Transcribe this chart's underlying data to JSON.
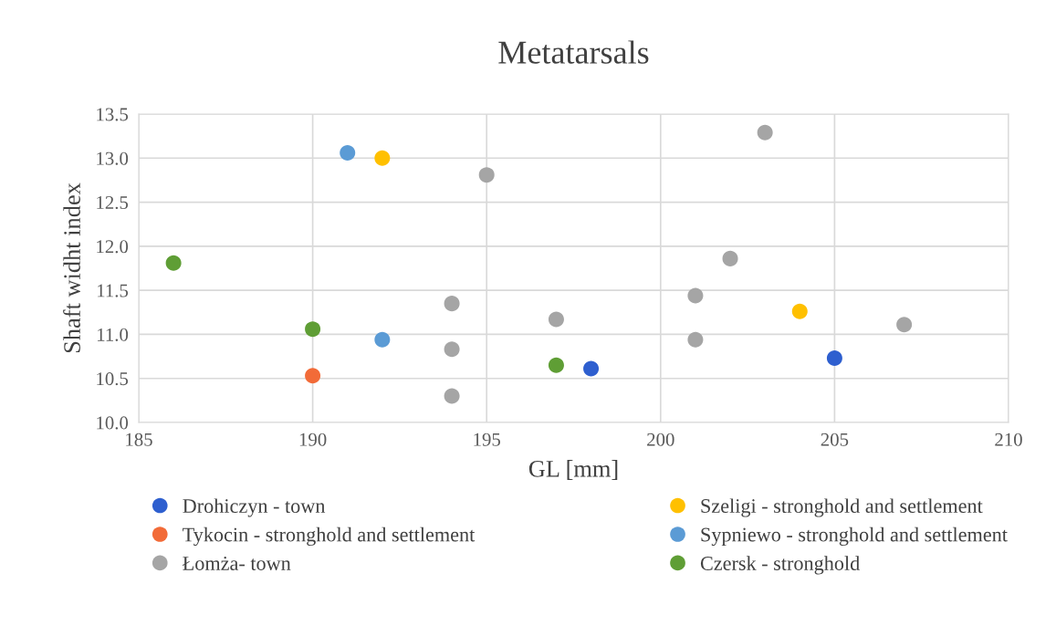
{
  "chart_data": {
    "type": "scatter",
    "title": "Metatarsals",
    "xlabel": "GL [mm]",
    "ylabel": "Shaft widht index",
    "xlim": [
      185,
      210
    ],
    "xticks": [
      185,
      190,
      195,
      200,
      205,
      210
    ],
    "ylim": [
      10.0,
      13.5
    ],
    "yticks": [
      {
        "value": 10.0,
        "label": "10.0"
      },
      {
        "value": 10.5,
        "label": "10.5"
      },
      {
        "value": 11.0,
        "label": "11.0"
      },
      {
        "value": 11.5,
        "label": "11.5"
      },
      {
        "value": 12.0,
        "label": "12.0"
      },
      {
        "value": 12.5,
        "label": "12.5"
      },
      {
        "value": 13.0,
        "label": "13.0"
      },
      {
        "value": 13.5,
        "label": "13.5"
      }
    ],
    "grid": true,
    "legend": "bottom",
    "marker": "circle",
    "series": [
      {
        "name": "Drohiczyn - town",
        "color": "#2e5fcf",
        "x": [
          198,
          205
        ],
        "values": [
          10.61,
          10.73
        ]
      },
      {
        "name": "Tykocin - stronghold and settlement",
        "color": "#f26b38",
        "x": [
          190
        ],
        "values": [
          10.53
        ]
      },
      {
        "name": "Łomża- town",
        "color": "#a5a5a5",
        "x": [
          203,
          195,
          202,
          194,
          201,
          197,
          207,
          194,
          201,
          194
        ],
        "values": [
          13.29,
          12.81,
          11.86,
          11.35,
          11.44,
          11.17,
          11.11,
          10.83,
          10.94,
          10.3
        ]
      },
      {
        "name": "Szeligi - stronghold and settlement",
        "color": "#ffc000",
        "x": [
          192,
          204
        ],
        "values": [
          13.0,
          11.26
        ]
      },
      {
        "name": "Sypniewo - stronghold and settlement",
        "color": "#5b9bd5",
        "x": [
          191,
          192
        ],
        "values": [
          13.06,
          10.94
        ]
      },
      {
        "name": "Czersk - stronghold",
        "color": "#5f9e35",
        "x": [
          186,
          190,
          197
        ],
        "values": [
          11.81,
          11.06,
          10.65
        ]
      }
    ]
  }
}
